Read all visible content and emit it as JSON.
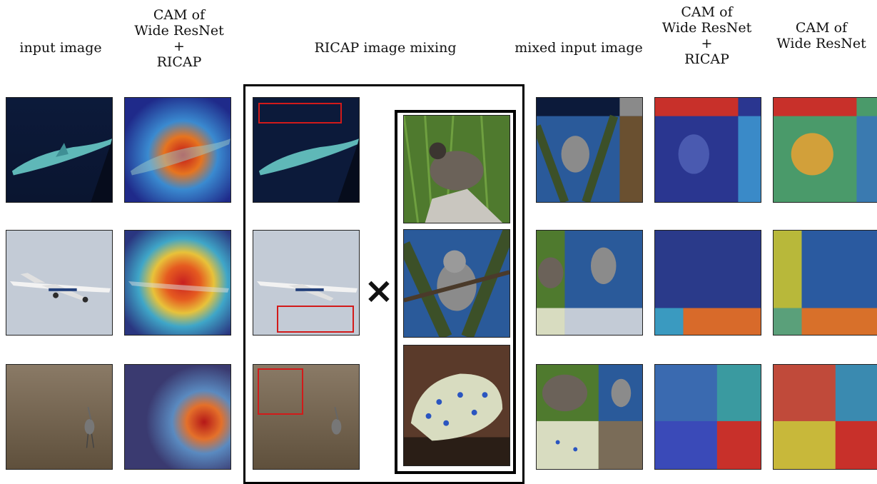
{
  "headers": {
    "input": [
      "input image"
    ],
    "cam_ricap": [
      "CAM of",
      "Wide ResNet",
      "+",
      "RICAP"
    ],
    "mixing": [
      "RICAP image mixing"
    ],
    "mixed": [
      "mixed input image"
    ],
    "cam_ricap2": [
      "CAM of",
      "Wide ResNet",
      "+",
      "RICAP"
    ],
    "cam_wrn": [
      "CAM of",
      "Wide ResNet"
    ]
  },
  "operator": "×",
  "subjects": [
    "shark",
    "airplane",
    "crane",
    "quail",
    "koala",
    "sea slug"
  ],
  "colors": {
    "frame": "#000000",
    "crop_box": "#d21a1a"
  }
}
